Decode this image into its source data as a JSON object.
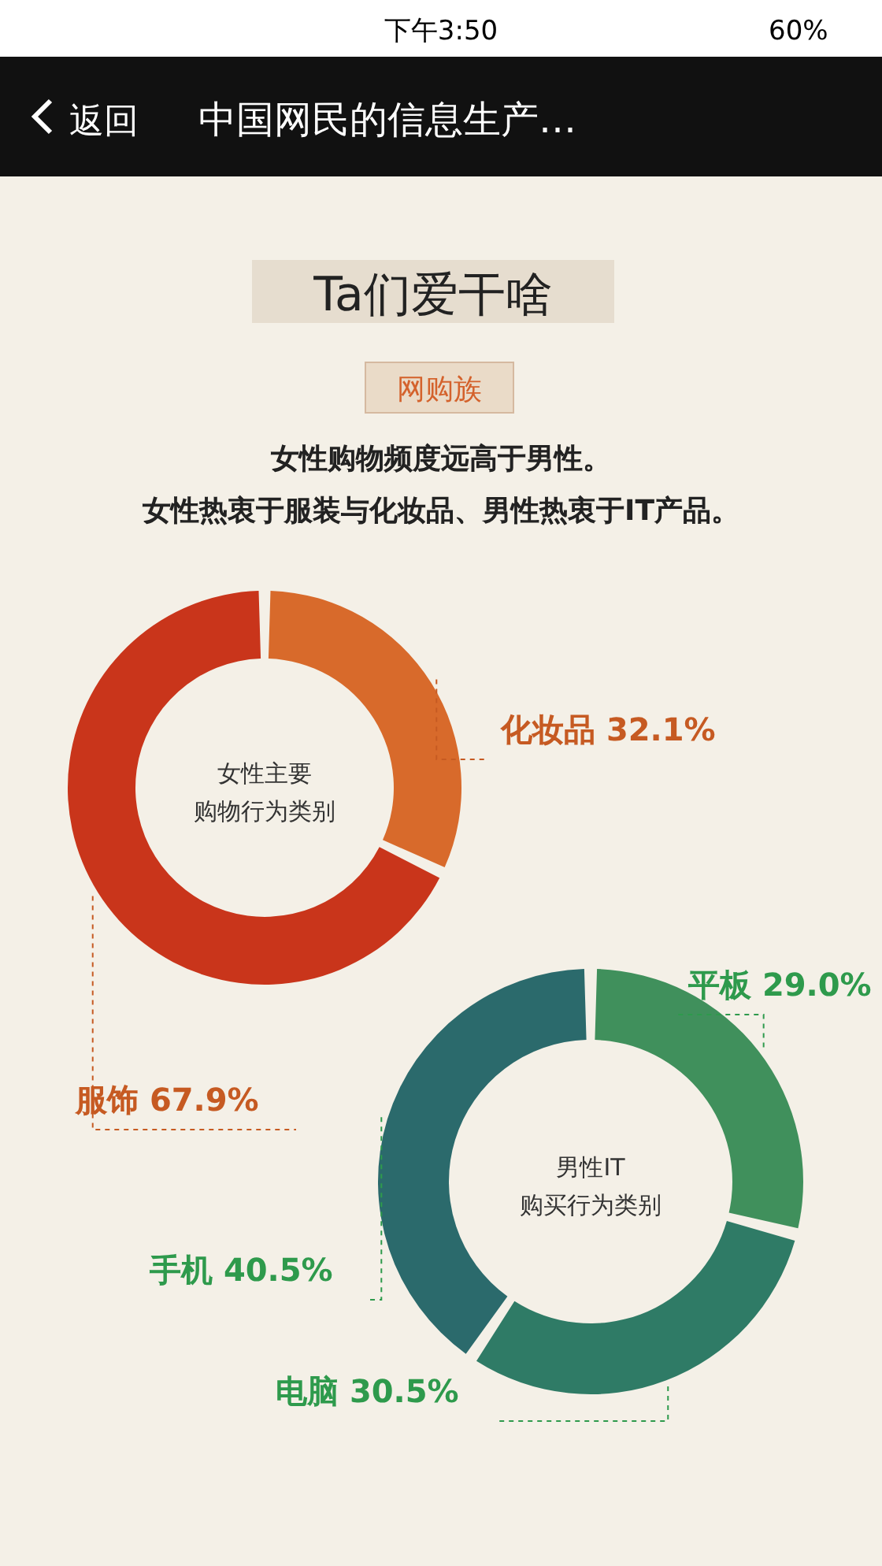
{
  "chart_data": [
    {
      "type": "other",
      "title": "Ta们爱干啥",
      "subtitle": "网购族",
      "annotations": [
        "下午3:50",
        "60%",
        "返回",
        "中国网民的信息生产…",
        "女性购物频度远高于男性。",
        "女性热衷于服装与化妆品、男性热衷于IT产品。"
      ]
    },
    {
      "type": "donut",
      "title": "女性主要购物行为类别",
      "categories": [
        "化妆品",
        "服饰"
      ],
      "values": [
        32.1,
        67.9
      ],
      "colors": [
        "#d86a2b",
        "#c9351b"
      ],
      "value_labels": [
        "32.1%",
        "67.9%"
      ]
    },
    {
      "type": "donut",
      "title": "男性IT购买行为类别",
      "categories": [
        "平板",
        "电脑",
        "手机"
      ],
      "values": [
        29.0,
        30.5,
        40.5
      ],
      "colors": [
        "#40905c",
        "#2f7b66",
        "#2b6a6c"
      ],
      "value_labels": [
        "29.0%",
        "30.5%",
        "40.5%"
      ]
    }
  ]
}
